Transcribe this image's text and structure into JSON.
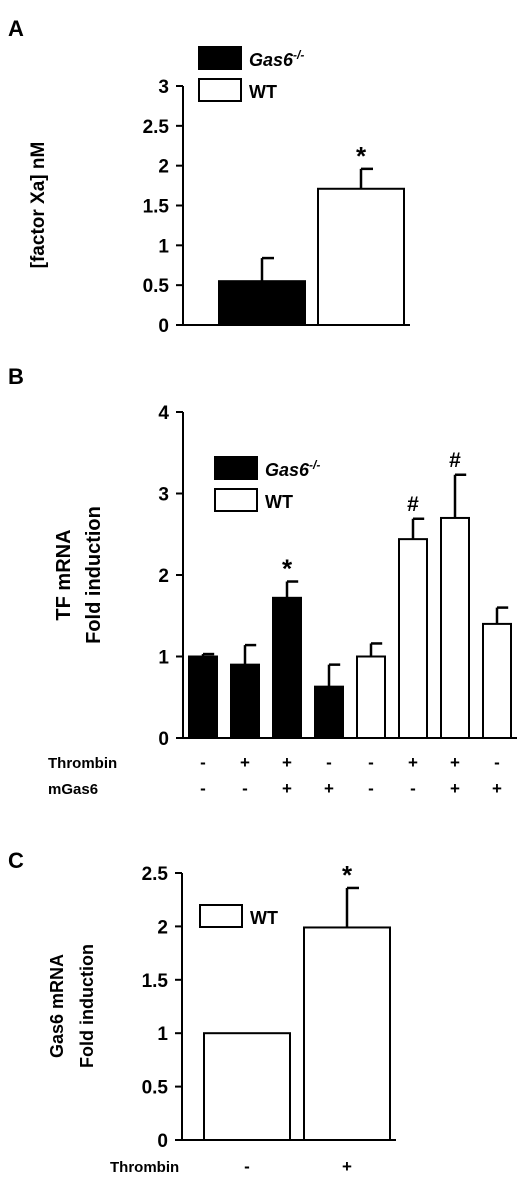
{
  "chart_data": [
    {
      "panel": "A",
      "type": "bar",
      "ylabel": "[factor Xa] nM",
      "ylim": [
        0,
        3
      ],
      "yticks": [
        "0",
        "0.5",
        "1",
        "1.5",
        "2",
        "2.5",
        "3"
      ],
      "ytick_values": [
        0,
        0.5,
        1,
        1.5,
        2,
        2.5,
        3
      ],
      "legend": [
        {
          "label": "Gas6",
          "sup": "-/-",
          "fill": "#000000",
          "italic": true
        },
        {
          "label": "WT",
          "sup": "",
          "fill": "#ffffff",
          "italic": false
        }
      ],
      "bars": [
        {
          "value": 0.55,
          "error": 0.29,
          "fill": "#000000",
          "annotation": ""
        },
        {
          "value": 1.71,
          "error": 0.25,
          "fill": "#ffffff",
          "annotation": "*"
        }
      ]
    },
    {
      "panel": "B",
      "type": "bar",
      "ylabel_lines": [
        "TF mRNA",
        "Fold induction"
      ],
      "ylim": [
        0,
        4
      ],
      "yticks": [
        "0",
        "1",
        "2",
        "3",
        "4"
      ],
      "ytick_values": [
        0,
        1,
        2,
        3,
        4
      ],
      "legend": [
        {
          "label": "Gas6",
          "sup": "-/-",
          "fill": "#000000",
          "italic": true
        },
        {
          "label": "WT",
          "sup": "",
          "fill": "#ffffff",
          "italic": false
        }
      ],
      "bars": [
        {
          "value": 1.0,
          "error": 0.03,
          "fill": "#000000",
          "annotation": ""
        },
        {
          "value": 0.9,
          "error": 0.24,
          "fill": "#000000",
          "annotation": ""
        },
        {
          "value": 1.72,
          "error": 0.2,
          "fill": "#000000",
          "annotation": "*"
        },
        {
          "value": 0.63,
          "error": 0.27,
          "fill": "#000000",
          "annotation": ""
        },
        {
          "value": 1.0,
          "error": 0.16,
          "fill": "#ffffff",
          "annotation": ""
        },
        {
          "value": 2.44,
          "error": 0.25,
          "fill": "#ffffff",
          "annotation": "#"
        },
        {
          "value": 2.7,
          "error": 0.53,
          "fill": "#ffffff",
          "annotation": "#"
        },
        {
          "value": 1.4,
          "error": 0.2,
          "fill": "#ffffff",
          "annotation": ""
        }
      ],
      "conditions": [
        {
          "label": "Thrombin",
          "signs": [
            "-",
            "+",
            "+",
            "-",
            "-",
            "+",
            "+",
            "-"
          ]
        },
        {
          "label": "mGas6",
          "signs": [
            "-",
            "-",
            "+",
            "+",
            "-",
            "-",
            "+",
            "+"
          ]
        }
      ]
    },
    {
      "panel": "C",
      "type": "bar",
      "ylabel_lines": [
        "Gas6 mRNA",
        "Fold induction"
      ],
      "ylim": [
        0,
        2.5
      ],
      "yticks": [
        "0",
        "0.5",
        "1",
        "1.5",
        "2",
        "2.5"
      ],
      "ytick_values": [
        0,
        0.5,
        1,
        1.5,
        2,
        2.5
      ],
      "legend": [
        {
          "label": "WT",
          "sup": "",
          "fill": "#ffffff",
          "italic": false
        }
      ],
      "bars": [
        {
          "value": 1.0,
          "error": 0.0,
          "fill": "#ffffff",
          "annotation": ""
        },
        {
          "value": 1.99,
          "error": 0.37,
          "fill": "#ffffff",
          "annotation": "*"
        }
      ],
      "conditions": [
        {
          "label": "Thrombin",
          "signs": [
            "-",
            "+"
          ]
        }
      ]
    }
  ]
}
